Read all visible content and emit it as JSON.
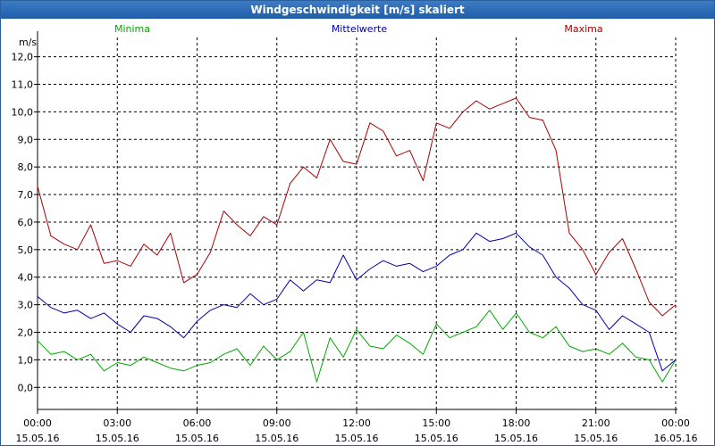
{
  "window": {
    "title": "Windgeschwindigkeit [m/s] skaliert"
  },
  "chart_data": {
    "type": "line",
    "title": "Windgeschwindigkeit [m/s] skaliert",
    "ylabel": "m/s",
    "ylim": [
      -0.8,
      12.7
    ],
    "xlim": [
      0,
      24
    ],
    "grid": true,
    "y_ticks": [
      0,
      1,
      2,
      3,
      4,
      5,
      6,
      7,
      8,
      9,
      10,
      11,
      12
    ],
    "y_tick_labels": [
      "0,0",
      "1,0",
      "2,0",
      "3,0",
      "4,0",
      "5,0",
      "6,0",
      "7,0",
      "8,0",
      "9,0",
      "10,0",
      "11,0",
      "12,0"
    ],
    "x_ticks": [
      0,
      3,
      6,
      9,
      12,
      15,
      18,
      21,
      24
    ],
    "x_tick_labels": [
      {
        "time": "00:00",
        "date": "15.05.16"
      },
      {
        "time": "03:00",
        "date": "15.05.16"
      },
      {
        "time": "06:00",
        "date": "15.05.16"
      },
      {
        "time": "09:00",
        "date": "15.05.16"
      },
      {
        "time": "12:00",
        "date": "15.05.16"
      },
      {
        "time": "15:00",
        "date": "15.05.16"
      },
      {
        "time": "18:00",
        "date": "15.05.16"
      },
      {
        "time": "21:00",
        "date": "15.05.16"
      },
      {
        "time": "00:00",
        "date": "16.05.16"
      }
    ],
    "series": [
      {
        "name": "Minima",
        "color": "#00aa00",
        "x": [
          0,
          0.5,
          1,
          1.5,
          2,
          2.5,
          3,
          3.5,
          4,
          4.5,
          5,
          5.5,
          6,
          6.5,
          7,
          7.5,
          8,
          8.5,
          9,
          9.5,
          10,
          10.5,
          11,
          11.5,
          12,
          12.5,
          13,
          13.5,
          14,
          14.5,
          15,
          15.5,
          16,
          16.5,
          17,
          17.5,
          18,
          18.5,
          19,
          19.5,
          20,
          20.5,
          21,
          21.5,
          22,
          22.5,
          23,
          23.5,
          24
        ],
        "values": [
          1.7,
          1.2,
          1.3,
          1.0,
          1.2,
          0.6,
          0.9,
          0.8,
          1.1,
          0.9,
          0.7,
          0.6,
          0.8,
          0.9,
          1.2,
          1.4,
          0.8,
          1.5,
          1.0,
          1.3,
          2.0,
          0.2,
          1.8,
          1.1,
          2.1,
          1.5,
          1.4,
          1.9,
          1.6,
          1.2,
          2.3,
          1.8,
          2.0,
          2.2,
          2.8,
          2.1,
          2.7,
          2.0,
          1.8,
          2.2,
          1.5,
          1.3,
          1.4,
          1.2,
          1.6,
          1.1,
          1.0,
          0.2,
          1.0
        ]
      },
      {
        "name": "Mittelwerte",
        "color": "#0000aa",
        "x": [
          0,
          0.5,
          1,
          1.5,
          2,
          2.5,
          3,
          3.5,
          4,
          4.5,
          5,
          5.5,
          6,
          6.5,
          7,
          7.5,
          8,
          8.5,
          9,
          9.5,
          10,
          10.5,
          11,
          11.5,
          12,
          12.5,
          13,
          13.5,
          14,
          14.5,
          15,
          15.5,
          16,
          16.5,
          17,
          17.5,
          18,
          18.5,
          19,
          19.5,
          20,
          20.5,
          21,
          21.5,
          22,
          22.5,
          23,
          23.5,
          24
        ],
        "values": [
          3.3,
          2.9,
          2.7,
          2.8,
          2.5,
          2.7,
          2.3,
          2.0,
          2.6,
          2.5,
          2.2,
          1.8,
          2.4,
          2.8,
          3.0,
          2.9,
          3.4,
          3.0,
          3.2,
          3.9,
          3.5,
          3.9,
          3.8,
          4.8,
          3.9,
          4.3,
          4.6,
          4.4,
          4.5,
          4.2,
          4.4,
          4.8,
          5.0,
          5.6,
          5.3,
          5.4,
          5.6,
          5.1,
          4.8,
          4.0,
          3.6,
          3.0,
          2.8,
          2.1,
          2.6,
          2.3,
          2.0,
          0.6,
          1.0
        ]
      },
      {
        "name": "Maxima",
        "color": "#aa0000",
        "x": [
          0,
          0.5,
          1,
          1.5,
          2,
          2.5,
          3,
          3.5,
          4,
          4.5,
          5,
          5.5,
          6,
          6.5,
          7,
          7.5,
          8,
          8.5,
          9,
          9.5,
          10,
          10.5,
          11,
          11.5,
          12,
          12.5,
          13,
          13.5,
          14,
          14.5,
          15,
          15.5,
          16,
          16.5,
          17,
          17.5,
          18,
          18.5,
          19,
          19.5,
          20,
          20.5,
          21,
          21.5,
          22,
          22.5,
          23,
          23.5,
          24
        ],
        "values": [
          7.3,
          5.5,
          5.2,
          5.0,
          5.9,
          4.5,
          4.6,
          4.4,
          5.2,
          4.8,
          5.6,
          3.8,
          4.1,
          4.9,
          6.4,
          5.9,
          5.5,
          6.2,
          5.9,
          7.4,
          8.0,
          7.6,
          9.0,
          8.2,
          8.1,
          9.6,
          9.3,
          8.4,
          8.6,
          7.5,
          9.6,
          9.4,
          10.0,
          10.4,
          10.1,
          10.3,
          10.5,
          9.8,
          9.7,
          8.6,
          5.6,
          5.0,
          4.1,
          4.9,
          5.4,
          4.3,
          3.1,
          2.6,
          3.0
        ]
      }
    ]
  }
}
